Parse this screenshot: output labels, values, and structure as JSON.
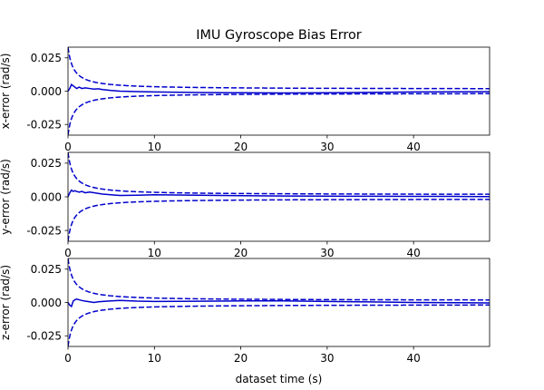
{
  "chart_data": {
    "type": "line",
    "title": "IMU Gyroscope Bias Error",
    "xlabel": "dataset time (s)",
    "xlim": [
      0,
      48.8
    ],
    "x_ticks": [
      0,
      10,
      20,
      30,
      40
    ],
    "x_tick_labels": [
      "0",
      "10",
      "20",
      "30",
      "40"
    ],
    "grid": false,
    "legend": "none",
    "colors": {
      "series": "#0000cc",
      "axes": "#000000",
      "background": "#ffffff"
    },
    "subplots": [
      {
        "ylabel": "x-error (rad/s)",
        "ylim": [
          -0.033,
          0.033
        ],
        "y_ticks": [
          0.025,
          0.0,
          -0.025
        ],
        "y_tick_labels": [
          "0.025",
          "0.000",
          "-0.025"
        ],
        "bound": {
          "a0": 0.033,
          "k": 0.62,
          "floor": 0.0015
        },
        "error": {
          "x": [
            0,
            0.2,
            0.4,
            0.6,
            0.8,
            1.0,
            1.3,
            1.6,
            2.0,
            2.5,
            3.0,
            3.5,
            4.0,
            5.0,
            6.0,
            8.0,
            10.0,
            15.0,
            20.0,
            25.0,
            30.0,
            35.0,
            40.0,
            45.0,
            48.8
          ],
          "y": [
            0.0,
            0.002,
            0.005,
            0.004,
            0.003,
            0.002,
            0.003,
            0.002,
            0.0025,
            0.002,
            0.0015,
            0.0018,
            0.0012,
            0.0005,
            0.0,
            -0.0003,
            -0.0006,
            -0.001,
            -0.0012,
            -0.0014,
            -0.0012,
            -0.0009,
            -0.0006,
            -0.0005,
            -0.0004
          ]
        }
      },
      {
        "ylabel": "y-error (rad/s)",
        "ylim": [
          -0.033,
          0.033
        ],
        "y_ticks": [
          0.025,
          0.0,
          -0.025
        ],
        "y_tick_labels": [
          "0.025",
          "0.000",
          "-0.025"
        ],
        "bound": {
          "a0": 0.033,
          "k": 0.62,
          "floor": 0.0015
        },
        "error": {
          "x": [
            0,
            0.2,
            0.4,
            0.6,
            0.8,
            1.0,
            1.3,
            1.6,
            2.0,
            2.5,
            3.0,
            3.5,
            4.0,
            5.0,
            6.0,
            8.0,
            10.0,
            15.0,
            20.0,
            25.0,
            30.0,
            35.0,
            40.0,
            45.0,
            48.8
          ],
          "y": [
            0.0,
            0.003,
            0.005,
            0.004,
            0.0045,
            0.004,
            0.0035,
            0.004,
            0.003,
            0.0035,
            0.003,
            0.0025,
            0.002,
            0.0015,
            0.001,
            0.0012,
            0.0015,
            0.0012,
            0.0008,
            0.0006,
            0.0005,
            0.0004,
            0.0003,
            0.0003,
            0.0002
          ]
        }
      },
      {
        "ylabel": "z-error (rad/s)",
        "ylim": [
          -0.033,
          0.033
        ],
        "y_ticks": [
          0.025,
          0.0,
          -0.025
        ],
        "y_tick_labels": [
          "0.025",
          "0.000",
          "-0.025"
        ],
        "bound": {
          "a0": 0.033,
          "k": 0.62,
          "floor": 0.0015
        },
        "error": {
          "x": [
            0,
            0.2,
            0.4,
            0.6,
            0.8,
            1.0,
            1.3,
            1.6,
            2.0,
            2.5,
            3.0,
            3.5,
            4.0,
            5.0,
            6.0,
            8.0,
            10.0,
            15.0,
            20.0,
            25.0,
            30.0,
            35.0,
            40.0,
            45.0,
            48.8
          ],
          "y": [
            0.0,
            -0.002,
            -0.003,
            0.001,
            0.002,
            0.0025,
            0.002,
            0.0015,
            0.001,
            0.0005,
            0.0,
            0.0005,
            0.0008,
            0.0012,
            0.0015,
            0.001,
            0.0008,
            0.0009,
            0.0012,
            0.0012,
            0.0008,
            0.0004,
            0.0,
            -0.0002,
            -0.0003
          ]
        }
      }
    ]
  }
}
